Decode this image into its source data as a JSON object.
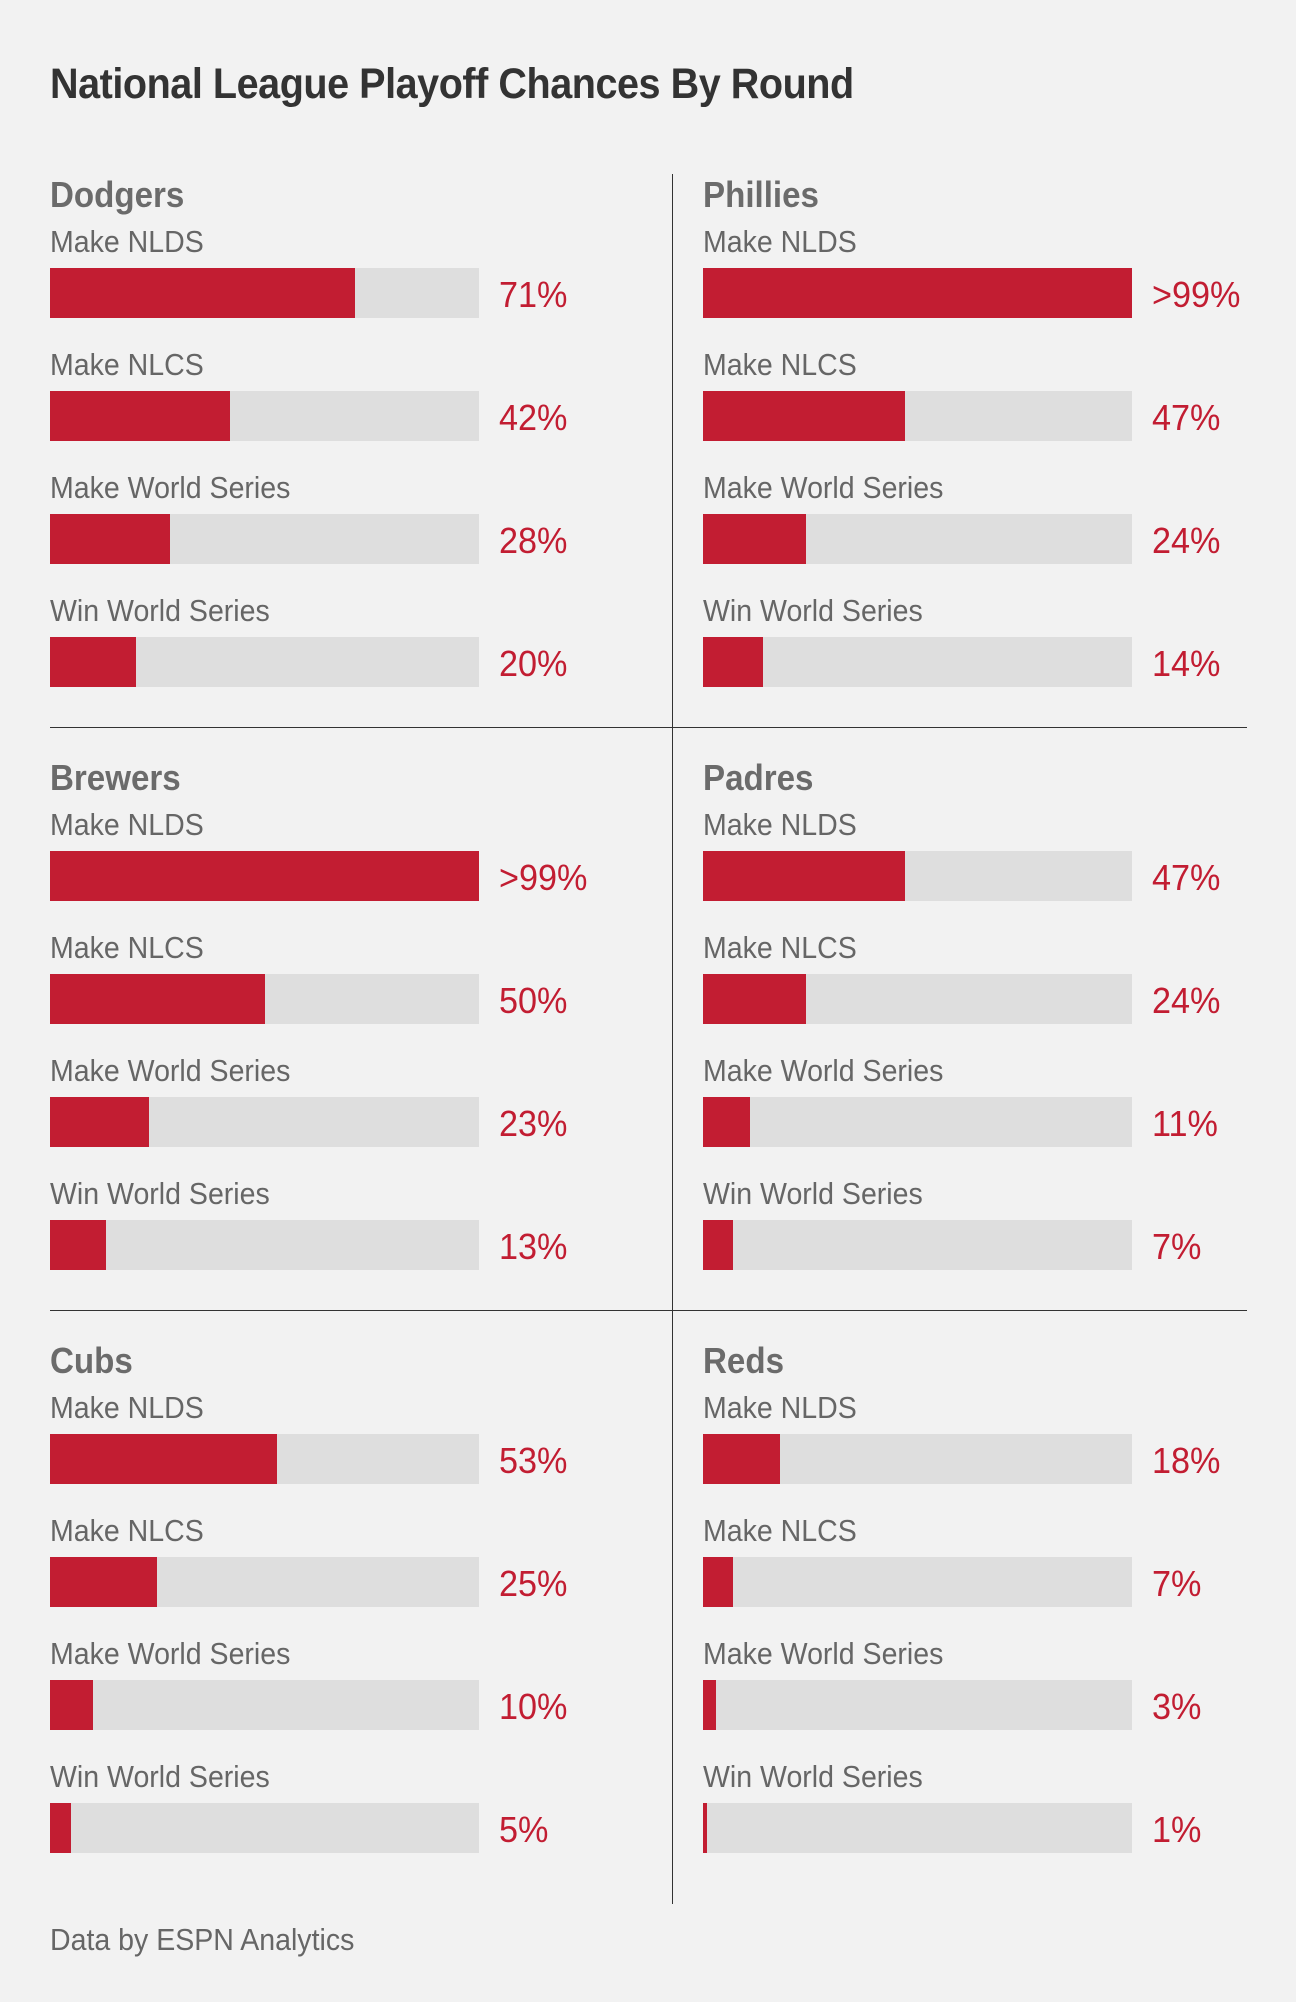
{
  "chart_data": {
    "type": "bar",
    "title": "National League Playoff Chances By Round",
    "source": "Data by ESPN Analytics",
    "categories": [
      "Make NLDS",
      "Make NLCS",
      "Make World Series",
      "Win World Series"
    ],
    "xlim": [
      0,
      100
    ],
    "unit": "%",
    "colors": {
      "fill": "#c21d32",
      "track": "#dedede",
      "label": "#666666",
      "value": "#c21d32"
    },
    "teams": [
      {
        "name": "Dodgers",
        "rounds": [
          {
            "label": "Make NLDS",
            "value": 71,
            "display": "71%"
          },
          {
            "label": "Make NLCS",
            "value": 42,
            "display": "42%"
          },
          {
            "label": "Make World Series",
            "value": 28,
            "display": "28%"
          },
          {
            "label": "Win World Series",
            "value": 20,
            "display": "20%"
          }
        ]
      },
      {
        "name": "Phillies",
        "rounds": [
          {
            "label": "Make NLDS",
            "value": 99.9,
            "display": ">99%"
          },
          {
            "label": "Make NLCS",
            "value": 47,
            "display": "47%"
          },
          {
            "label": "Make World Series",
            "value": 24,
            "display": "24%"
          },
          {
            "label": "Win World Series",
            "value": 14,
            "display": "14%"
          }
        ]
      },
      {
        "name": "Brewers",
        "rounds": [
          {
            "label": "Make NLDS",
            "value": 99.9,
            "display": ">99%"
          },
          {
            "label": "Make NLCS",
            "value": 50,
            "display": "50%"
          },
          {
            "label": "Make World Series",
            "value": 23,
            "display": "23%"
          },
          {
            "label": "Win World Series",
            "value": 13,
            "display": "13%"
          }
        ]
      },
      {
        "name": "Padres",
        "rounds": [
          {
            "label": "Make NLDS",
            "value": 47,
            "display": "47%"
          },
          {
            "label": "Make NLCS",
            "value": 24,
            "display": "24%"
          },
          {
            "label": "Make World Series",
            "value": 11,
            "display": "11%"
          },
          {
            "label": "Win World Series",
            "value": 7,
            "display": "7%"
          }
        ]
      },
      {
        "name": "Cubs",
        "rounds": [
          {
            "label": "Make NLDS",
            "value": 53,
            "display": "53%"
          },
          {
            "label": "Make NLCS",
            "value": 25,
            "display": "25%"
          },
          {
            "label": "Make World Series",
            "value": 10,
            "display": "10%"
          },
          {
            "label": "Win World Series",
            "value": 5,
            "display": "5%"
          }
        ]
      },
      {
        "name": "Reds",
        "rounds": [
          {
            "label": "Make NLDS",
            "value": 18,
            "display": "18%"
          },
          {
            "label": "Make NLCS",
            "value": 7,
            "display": "7%"
          },
          {
            "label": "Make World Series",
            "value": 3,
            "display": "3%"
          },
          {
            "label": "Win World Series",
            "value": 1,
            "display": "1%"
          }
        ]
      }
    ]
  }
}
